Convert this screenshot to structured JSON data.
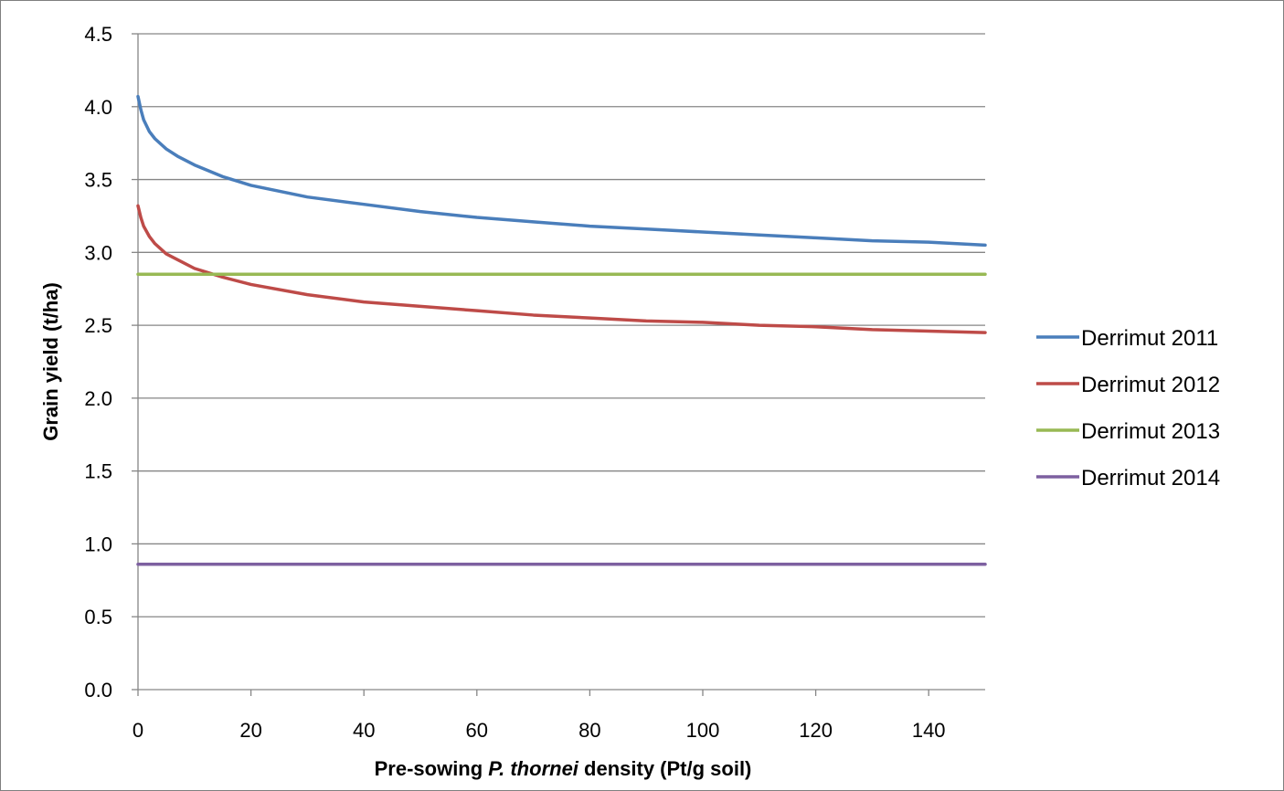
{
  "chart_data": {
    "type": "line",
    "xlabel": {
      "prefix": "Pre-sowing ",
      "italic": "P. thornei",
      "suffix": " density (Pt/g soil)"
    },
    "ylabel": "Grain yield (t/ha)",
    "xlim": [
      0,
      150
    ],
    "ylim": [
      0,
      4.5
    ],
    "xticks": [
      0,
      20,
      40,
      60,
      80,
      100,
      120,
      140
    ],
    "yticks": [
      "0.0",
      "0.5",
      "1.0",
      "1.5",
      "2.0",
      "2.5",
      "3.0",
      "3.5",
      "4.0",
      "4.5"
    ],
    "grid": "horizontal",
    "legend_position": "right",
    "series": [
      {
        "name": "Derrimut 2011",
        "color": "#4a7ebb",
        "x": [
          0,
          0.5,
          1,
          2,
          3,
          5,
          7,
          10,
          15,
          20,
          30,
          40,
          50,
          60,
          70,
          80,
          90,
          100,
          110,
          120,
          130,
          140,
          150
        ],
        "y": [
          4.07,
          3.98,
          3.91,
          3.83,
          3.78,
          3.71,
          3.66,
          3.6,
          3.52,
          3.46,
          3.38,
          3.33,
          3.28,
          3.24,
          3.21,
          3.18,
          3.16,
          3.14,
          3.12,
          3.1,
          3.08,
          3.07,
          3.05
        ]
      },
      {
        "name": "Derrimut 2012",
        "color": "#be4b48",
        "x": [
          0,
          0.5,
          1,
          2,
          3,
          5,
          7,
          10,
          15,
          20,
          30,
          40,
          50,
          60,
          70,
          80,
          90,
          100,
          110,
          120,
          130,
          140,
          150
        ],
        "y": [
          3.32,
          3.24,
          3.18,
          3.11,
          3.06,
          2.99,
          2.95,
          2.89,
          2.83,
          2.78,
          2.71,
          2.66,
          2.63,
          2.6,
          2.57,
          2.55,
          2.53,
          2.52,
          2.5,
          2.49,
          2.47,
          2.46,
          2.45
        ]
      },
      {
        "name": "Derrimut 2013",
        "color": "#98b954",
        "x": [
          0,
          150
        ],
        "y": [
          2.85,
          2.85
        ]
      },
      {
        "name": "Derrimut 2014",
        "color": "#7d60a0",
        "x": [
          0,
          150
        ],
        "y": [
          0.86,
          0.86
        ]
      }
    ]
  }
}
